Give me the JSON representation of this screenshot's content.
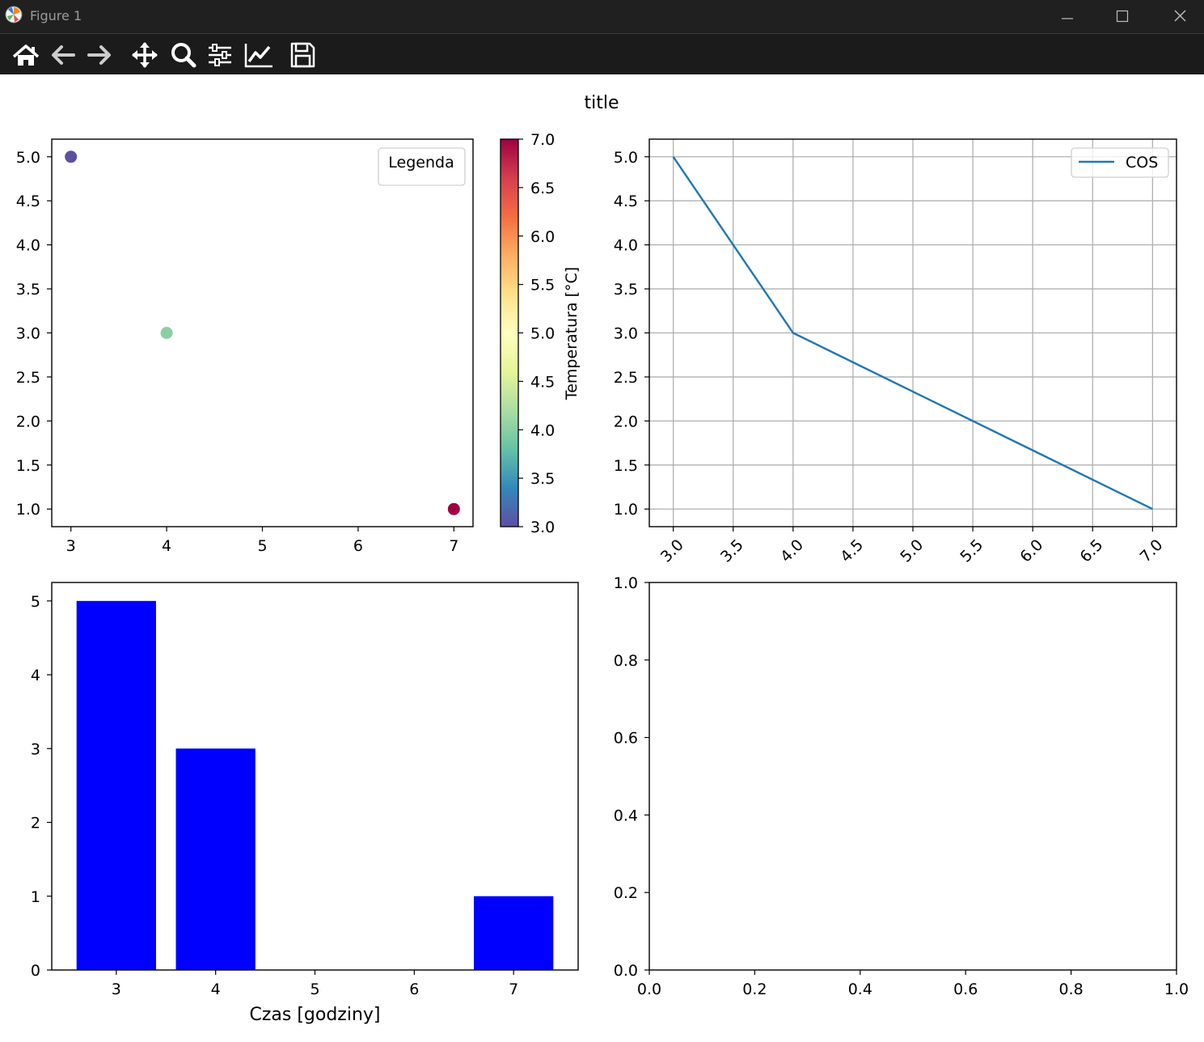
{
  "window": {
    "title": "Figure 1"
  },
  "toolbar": {
    "tools": [
      {
        "name": "home-icon"
      },
      {
        "name": "back-arrow-icon"
      },
      {
        "name": "forward-arrow-icon"
      },
      {
        "name": "pan-icon"
      },
      {
        "name": "zoom-icon"
      },
      {
        "name": "subplots-config-icon"
      },
      {
        "name": "edit-axes-icon"
      },
      {
        "name": "save-icon"
      }
    ]
  },
  "figure": {
    "suptitle": "title"
  },
  "colors": {
    "bar": "#0000ff",
    "line": "#1f77b4",
    "cmap": [
      "#5e4fa2",
      "#3288bd",
      "#66c2a5",
      "#abdda4",
      "#e6f598",
      "#ffffbf",
      "#fee08b",
      "#fdae61",
      "#f46d43",
      "#d53e4f",
      "#9e0142"
    ]
  },
  "chart_data": [
    {
      "id": "scatter",
      "type": "scatter",
      "x": [
        3,
        4,
        7
      ],
      "y": [
        5,
        3,
        1
      ],
      "c": [
        3,
        4,
        7
      ],
      "point_colors": [
        "#5e4fa2",
        "#88d0a4",
        "#9e0142"
      ],
      "xlim": [
        2.8,
        7.2
      ],
      "ylim": [
        0.8,
        5.2
      ],
      "xticks": [
        3,
        4,
        5,
        6,
        7
      ],
      "yticks": [
        "1.0",
        "1.5",
        "2.0",
        "2.5",
        "3.0",
        "3.5",
        "4.0",
        "4.5",
        "5.0"
      ],
      "legend": {
        "title": "Legenda",
        "loc": "upper right"
      },
      "colorbar": {
        "label": "Temperatura [°C]",
        "ticks": [
          "3.0",
          "3.5",
          "4.0",
          "4.5",
          "5.0",
          "5.5",
          "6.0",
          "6.5",
          "7.0"
        ],
        "range": [
          3,
          7
        ],
        "cmap": "Spectral_r"
      },
      "grid": false
    },
    {
      "id": "line",
      "type": "line",
      "x": [
        3,
        4,
        7
      ],
      "y": [
        5,
        3,
        1
      ],
      "xlim": [
        2.8,
        7.2
      ],
      "ylim": [
        0.8,
        5.2
      ],
      "xticks": [
        "3.0",
        "3.5",
        "4.0",
        "4.5",
        "5.0",
        "5.5",
        "6.0",
        "6.5",
        "7.0"
      ],
      "yticks": [
        "1.0",
        "1.5",
        "2.0",
        "2.5",
        "3.0",
        "3.5",
        "4.0",
        "4.5",
        "5.0"
      ],
      "series": [
        {
          "name": "COS"
        }
      ],
      "legend": {
        "loc": "upper right"
      },
      "xtick_rotation": 45,
      "grid": true
    },
    {
      "id": "bar",
      "type": "bar",
      "x": [
        3,
        4,
        7
      ],
      "values": [
        5,
        3,
        1
      ],
      "xlim": [
        2.35,
        7.65
      ],
      "ylim": [
        0,
        5.25
      ],
      "xticks": [
        3,
        4,
        5,
        6,
        7
      ],
      "yticks": [
        0,
        1,
        2,
        3,
        4,
        5
      ],
      "xlabel": "Czas [godziny]",
      "bar_width": 0.8,
      "grid": false
    },
    {
      "id": "empty",
      "type": "line",
      "xlim": [
        0,
        1
      ],
      "ylim": [
        0,
        1
      ],
      "xticks": [
        "0.0",
        "0.2",
        "0.4",
        "0.6",
        "0.8",
        "1.0"
      ],
      "yticks": [
        "0.0",
        "0.2",
        "0.4",
        "0.6",
        "0.8",
        "1.0"
      ],
      "grid": false
    }
  ]
}
